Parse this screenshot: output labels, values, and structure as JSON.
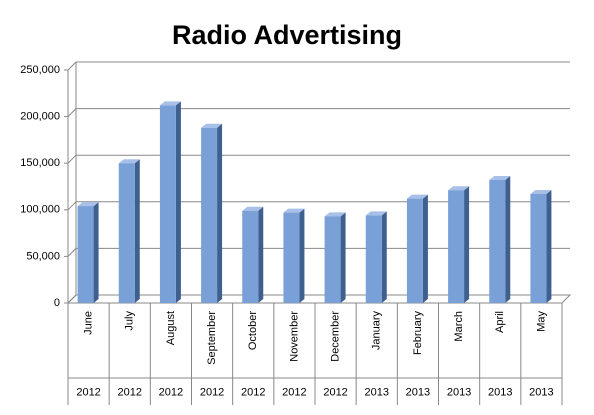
{
  "chart_data": {
    "type": "bar",
    "title": "Radio Advertising",
    "categories": [
      "June",
      "July",
      "August",
      "September",
      "October",
      "November",
      "December",
      "January",
      "February",
      "March",
      "April",
      "May"
    ],
    "years": [
      "2012",
      "2012",
      "2012",
      "2012",
      "2012",
      "2012",
      "2012",
      "2013",
      "2013",
      "2013",
      "2013",
      "2013"
    ],
    "values": [
      104000,
      150000,
      212000,
      188000,
      99000,
      97000,
      93000,
      94000,
      112000,
      121000,
      132000,
      117000
    ],
    "color": "#7aa0d8",
    "ylim": [
      0,
      250000
    ],
    "yticks": [
      0,
      {
        "value": 50000,
        "label": "50,000"
      },
      {
        "value": 100000,
        "label": "100,000"
      },
      {
        "value": 150000,
        "label": "150,000"
      },
      {
        "value": 200000,
        "label": "200,000"
      },
      {
        "value": 250000,
        "label": "250,000"
      }
    ],
    "grid": true
  }
}
